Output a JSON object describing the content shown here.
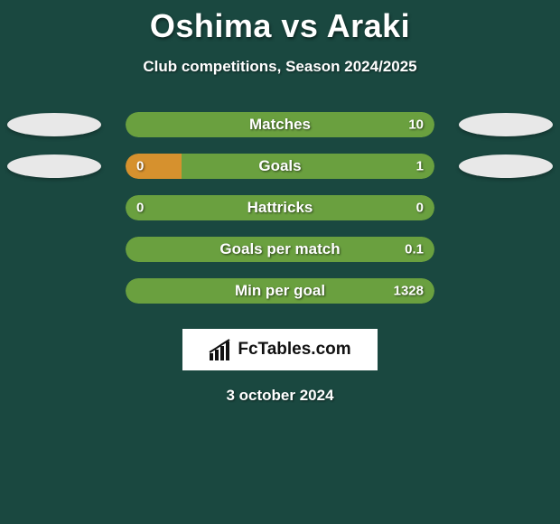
{
  "background_color": "#1a4840",
  "title": "Oshima vs Araki",
  "title_fontsize": 36,
  "title_color": "#ffffff",
  "subtitle": "Club competitions, Season 2024/2025",
  "subtitle_fontsize": 17,
  "subtitle_color": "#ffffff",
  "ellipse_color": "#e8e8e8",
  "bar_color_left": "#d6912e",
  "bar_color_right": "#6aa03f",
  "label_color": "#ffffff",
  "label_fontsize": 17,
  "value_fontsize": 15,
  "rows": [
    {
      "label": "Matches",
      "left_value": "",
      "right_value": "10",
      "left_pct": 0,
      "show_ellipses": true
    },
    {
      "label": "Goals",
      "left_value": "0",
      "right_value": "1",
      "left_pct": 18,
      "show_ellipses": true
    },
    {
      "label": "Hattricks",
      "left_value": "0",
      "right_value": "0",
      "left_pct": 0,
      "show_ellipses": false
    },
    {
      "label": "Goals per match",
      "left_value": "",
      "right_value": "0.1",
      "left_pct": 0,
      "show_ellipses": false
    },
    {
      "label": "Min per goal",
      "left_value": "",
      "right_value": "1328",
      "left_pct": 0,
      "show_ellipses": false
    }
  ],
  "logo_text": "FcTables.com",
  "logo_icon_color": "#111111",
  "date": "3 october 2024"
}
